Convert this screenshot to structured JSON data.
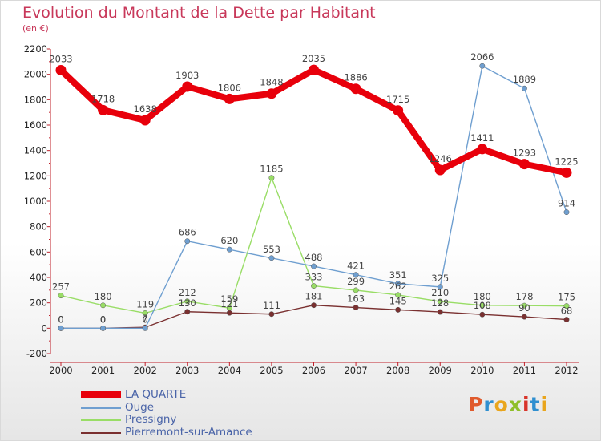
{
  "title": "Evolution du Montant de la Dette par Habitant",
  "subtitle": "(en €)",
  "logo": {
    "letters": [
      "P",
      "r",
      "o",
      "x",
      "i",
      "t",
      "i"
    ],
    "colors": [
      "#e05a2c",
      "#2f8fd0",
      "#e9a51c",
      "#8fbf2a",
      "#d8342b",
      "#2f8fd0",
      "#e9a51c"
    ]
  },
  "chart_data": {
    "type": "line",
    "x": [
      2000,
      2001,
      2002,
      2003,
      2004,
      2005,
      2006,
      2007,
      2008,
      2009,
      2010,
      2011,
      2012
    ],
    "x_tick_labels": [
      "2000",
      "2001",
      "2002",
      "2003",
      "2004",
      "2005",
      "2006",
      "2007",
      "2008",
      "2009",
      "2010",
      "2011",
      "2012"
    ],
    "ylim": [
      -200,
      2200
    ],
    "y_ticks": [
      -200,
      0,
      200,
      400,
      600,
      800,
      1000,
      1200,
      1400,
      1600,
      1800,
      2000,
      2200
    ],
    "y_tick_labels": [
      "-200",
      "0",
      "200",
      "400",
      "600",
      "800",
      "1000",
      "1200",
      "1400",
      "1600",
      "1800",
      "2000",
      "2200"
    ],
    "grid": false,
    "legend_position": "bottom-left",
    "series": [
      {
        "name": "LA QUARTE",
        "color": "#e8000b",
        "emphasis": "thick",
        "values": [
          2033,
          1718,
          1638,
          1903,
          1806,
          1848,
          2035,
          1886,
          1715,
          1246,
          1411,
          1293,
          1225
        ]
      },
      {
        "name": "Ouge",
        "color": "#6f9fd0",
        "emphasis": "thin",
        "values": [
          0,
          0,
          0,
          686,
          620,
          553,
          488,
          421,
          351,
          325,
          2066,
          1889,
          914
        ]
      },
      {
        "name": "Pressigny",
        "color": "#99dd66",
        "emphasis": "thin",
        "values": [
          257,
          180,
          119,
          212,
          159,
          1185,
          333,
          299,
          262,
          210,
          180,
          178,
          175
        ]
      },
      {
        "name": "Pierremont-sur-Amance",
        "color": "#7a3030",
        "emphasis": "thin",
        "values": [
          0,
          0,
          7,
          130,
          121,
          111,
          181,
          163,
          145,
          128,
          108,
          90,
          68
        ]
      }
    ],
    "data_labels": [
      {
        "series": 0,
        "labels": [
          "2033",
          "1718",
          "1638",
          "1903",
          "1806",
          "1848",
          "2035",
          "1886",
          "1715",
          "1246",
          "1411",
          "1293",
          "1225"
        ]
      },
      {
        "series": 1,
        "labels": [
          "0",
          "0",
          "0",
          "686",
          "620",
          "553",
          "488",
          "421",
          "351",
          "325",
          "2066",
          "1889",
          "914"
        ]
      },
      {
        "series": 2,
        "labels": [
          "257",
          "180",
          "119",
          "212",
          "159",
          "1185",
          "333",
          "299",
          "262",
          "210",
          "180",
          "178",
          "175"
        ]
      },
      {
        "series": 3,
        "labels": [
          "0",
          "0",
          "7",
          "130",
          "121",
          "111",
          "181",
          "163",
          "145",
          "128",
          "108",
          "90",
          "68"
        ]
      }
    ]
  }
}
